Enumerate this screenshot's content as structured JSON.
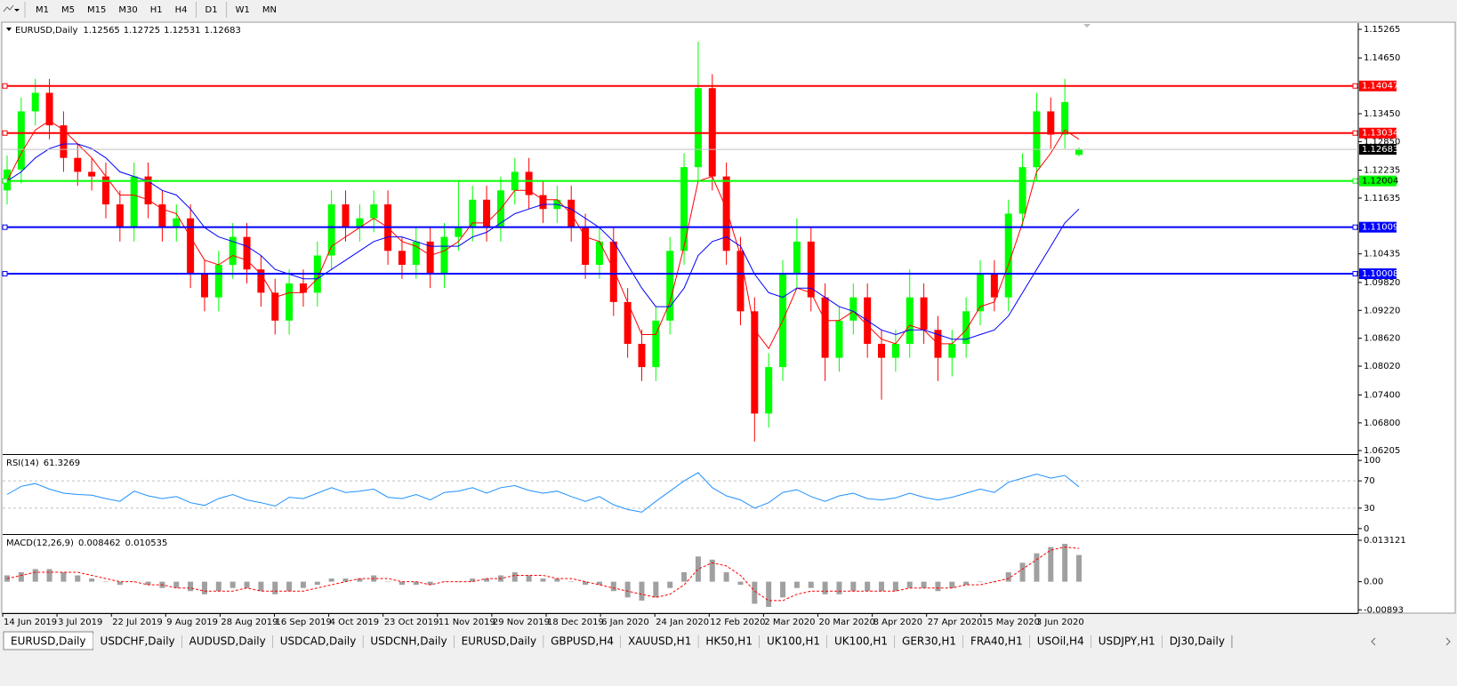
{
  "toolbar": {
    "timeframes": [
      "M1",
      "M5",
      "M15",
      "M30",
      "H1",
      "H4",
      "D1",
      "W1",
      "MN"
    ]
  },
  "tabs": [
    "EURUSD,Daily",
    "USDCHF,Daily",
    "AUDUSD,Daily",
    "USDCAD,Daily",
    "USDCNH,Daily",
    "EURUSD,Daily",
    "GBPUSD,H4",
    "XAUUSD,H1",
    "HK50,H1",
    "UK100,H1",
    "UK100,H1",
    "GER30,H1",
    "FRA40,H1",
    "USOil,H4",
    "USDJPY,H1",
    "DJ30,Daily"
  ],
  "chart_data": [
    {
      "type": "candlestick",
      "title": "EURUSD,Daily",
      "up_color": "#00ff00",
      "down_color": "#ff0000",
      "x": [
        "14 Jun 2019",
        "3 Jul 2019",
        "22 Jul 2019",
        "9 Aug 2019",
        "28 Aug 2019",
        "16 Sep 2019",
        "4 Oct 2019",
        "23 Oct 2019",
        "11 Nov 2019",
        "29 Nov 2019",
        "18 Dec 2019",
        "6 Jan 2020",
        "24 Jan 2020",
        "12 Feb 2020",
        "2 Mar 2020",
        "20 Mar 2020",
        "8 Apr 2020",
        "27 Apr 2020",
        "15 May 2020",
        "3 Jun 2020"
      ],
      "candles": [
        [
          1.118,
          1.1255,
          1.115,
          1.1225
        ],
        [
          1.1225,
          1.138,
          1.1195,
          1.135
        ],
        [
          1.135,
          1.142,
          1.132,
          1.139
        ],
        [
          1.139,
          1.142,
          1.129,
          1.132
        ],
        [
          1.132,
          1.135,
          1.122,
          1.125
        ],
        [
          1.125,
          1.128,
          1.119,
          1.122
        ],
        [
          1.122,
          1.125,
          1.118,
          1.121
        ],
        [
          1.121,
          1.124,
          1.112,
          1.115
        ],
        [
          1.115,
          1.118,
          1.107,
          1.11
        ],
        [
          1.11,
          1.124,
          1.107,
          1.121
        ],
        [
          1.121,
          1.124,
          1.112,
          1.115
        ],
        [
          1.115,
          1.118,
          1.107,
          1.11
        ],
        [
          1.11,
          1.115,
          1.107,
          1.112
        ],
        [
          1.112,
          1.115,
          1.097,
          1.1
        ],
        [
          1.1,
          1.103,
          1.092,
          1.095
        ],
        [
          1.095,
          1.105,
          1.092,
          1.102
        ],
        [
          1.102,
          1.111,
          1.099,
          1.108
        ],
        [
          1.108,
          1.111,
          1.098,
          1.101
        ],
        [
          1.101,
          1.104,
          1.093,
          1.096
        ],
        [
          1.096,
          1.099,
          1.087,
          1.09
        ],
        [
          1.09,
          1.101,
          1.087,
          1.098
        ],
        [
          1.098,
          1.101,
          1.093,
          1.096
        ],
        [
          1.096,
          1.107,
          1.093,
          1.104
        ],
        [
          1.104,
          1.118,
          1.101,
          1.115
        ],
        [
          1.115,
          1.118,
          1.107,
          1.11
        ],
        [
          1.11,
          1.115,
          1.107,
          1.112
        ],
        [
          1.112,
          1.118,
          1.109,
          1.115
        ],
        [
          1.115,
          1.118,
          1.102,
          1.105
        ],
        [
          1.105,
          1.108,
          1.099,
          1.102
        ],
        [
          1.102,
          1.11,
          1.099,
          1.107
        ],
        [
          1.107,
          1.11,
          1.097,
          1.1
        ],
        [
          1.1,
          1.111,
          1.097,
          1.108
        ],
        [
          1.108,
          1.12,
          1.105,
          1.11
        ],
        [
          1.11,
          1.119,
          1.107,
          1.116
        ],
        [
          1.116,
          1.119,
          1.107,
          1.11
        ],
        [
          1.11,
          1.121,
          1.107,
          1.118
        ],
        [
          1.118,
          1.125,
          1.115,
          1.122
        ],
        [
          1.122,
          1.125,
          1.114,
          1.117
        ],
        [
          1.117,
          1.12,
          1.111,
          1.114
        ],
        [
          1.114,
          1.119,
          1.111,
          1.116
        ],
        [
          1.116,
          1.119,
          1.107,
          1.11
        ],
        [
          1.11,
          1.113,
          1.099,
          1.102
        ],
        [
          1.102,
          1.11,
          1.099,
          1.107
        ],
        [
          1.107,
          1.11,
          1.091,
          1.094
        ],
        [
          1.094,
          1.097,
          1.082,
          1.085
        ],
        [
          1.085,
          1.088,
          1.077,
          1.08
        ],
        [
          1.08,
          1.093,
          1.077,
          1.09
        ],
        [
          1.09,
          1.108,
          1.087,
          1.105
        ],
        [
          1.105,
          1.126,
          1.102,
          1.123
        ],
        [
          1.123,
          1.15,
          1.12,
          1.14
        ],
        [
          1.14,
          1.143,
          1.118,
          1.121
        ],
        [
          1.121,
          1.124,
          1.102,
          1.105
        ],
        [
          1.105,
          1.108,
          1.089,
          1.092
        ],
        [
          1.092,
          1.095,
          1.064,
          1.07
        ],
        [
          1.07,
          1.083,
          1.067,
          1.08
        ],
        [
          1.08,
          1.103,
          1.077,
          1.1
        ],
        [
          1.1,
          1.112,
          1.097,
          1.107
        ],
        [
          1.107,
          1.11,
          1.092,
          1.095
        ],
        [
          1.095,
          1.098,
          1.077,
          1.082
        ],
        [
          1.082,
          1.093,
          1.079,
          1.09
        ],
        [
          1.09,
          1.098,
          1.087,
          1.095
        ],
        [
          1.095,
          1.098,
          1.082,
          1.085
        ],
        [
          1.085,
          1.088,
          1.073,
          1.082
        ],
        [
          1.082,
          1.088,
          1.079,
          1.085
        ],
        [
          1.085,
          1.101,
          1.082,
          1.095
        ],
        [
          1.095,
          1.098,
          1.085,
          1.088
        ],
        [
          1.088,
          1.091,
          1.077,
          1.082
        ],
        [
          1.082,
          1.088,
          1.078,
          1.085
        ],
        [
          1.085,
          1.095,
          1.082,
          1.092
        ],
        [
          1.092,
          1.103,
          1.089,
          1.1
        ],
        [
          1.1,
          1.103,
          1.092,
          1.095
        ],
        [
          1.095,
          1.116,
          1.092,
          1.113
        ],
        [
          1.113,
          1.126,
          1.11,
          1.123
        ],
        [
          1.123,
          1.139,
          1.12,
          1.135
        ],
        [
          1.135,
          1.138,
          1.127,
          1.13
        ],
        [
          1.13,
          1.142,
          1.127,
          1.137
        ],
        [
          1.12565,
          1.12725,
          1.12531,
          1.12683
        ]
      ],
      "ma": [
        {
          "color": "#ff0000",
          "values": [
            1.12,
            1.126,
            1.131,
            1.133,
            1.131,
            1.128,
            1.125,
            1.121,
            1.117,
            1.117,
            1.116,
            1.114,
            1.113,
            1.108,
            1.103,
            1.102,
            1.104,
            1.103,
            1.1,
            1.095,
            1.096,
            1.096,
            1.099,
            1.106,
            1.108,
            1.11,
            1.112,
            1.11,
            1.107,
            1.106,
            1.104,
            1.105,
            1.107,
            1.111,
            1.111,
            1.114,
            1.118,
            1.118,
            1.116,
            1.116,
            1.113,
            1.108,
            1.107,
            1.101,
            1.094,
            1.087,
            1.087,
            1.094,
            1.106,
            1.12,
            1.121,
            1.114,
            1.104,
            1.088,
            1.084,
            1.09,
            1.097,
            1.096,
            1.09,
            1.09,
            1.092,
            1.089,
            1.086,
            1.085,
            1.089,
            1.088,
            1.085,
            1.085,
            1.088,
            1.093,
            1.094,
            1.102,
            1.111,
            1.122,
            1.126,
            1.131,
            1.129
          ]
        },
        {
          "color": "#0000ff",
          "values": [
            1.12,
            1.122,
            1.125,
            1.127,
            1.128,
            1.128,
            1.127,
            1.125,
            1.122,
            1.121,
            1.12,
            1.118,
            1.117,
            1.114,
            1.11,
            1.108,
            1.107,
            1.106,
            1.104,
            1.101,
            1.1,
            1.099,
            1.099,
            1.101,
            1.103,
            1.105,
            1.107,
            1.108,
            1.108,
            1.107,
            1.106,
            1.106,
            1.106,
            1.108,
            1.109,
            1.111,
            1.113,
            1.114,
            1.115,
            1.115,
            1.114,
            1.112,
            1.11,
            1.107,
            1.102,
            1.097,
            1.093,
            1.093,
            1.097,
            1.104,
            1.107,
            1.108,
            1.106,
            1.1,
            1.096,
            1.095,
            1.097,
            1.097,
            1.095,
            1.093,
            1.092,
            1.09,
            1.088,
            1.087,
            1.088,
            1.088,
            1.087,
            1.086,
            1.086,
            1.087,
            1.088,
            1.091,
            1.096,
            1.101,
            1.106,
            1.111,
            1.114
          ]
        }
      ],
      "levels": [
        {
          "value": 1.14047,
          "color": "#ff0000"
        },
        {
          "value": 1.13034,
          "color": "#ff0000"
        },
        {
          "value": 1.12004,
          "color": "#00ff00"
        },
        {
          "value": 1.11009,
          "color": "#0000ff"
        },
        {
          "value": 1.10008,
          "color": "#0000ff"
        }
      ],
      "ylim": [
        1.06148,
        1.15399
      ],
      "yticks": [
        1.15265,
        {
          "value": 1.1465,
          "label": "1.14650"
        },
        {
          "value": 1.1345,
          "label": "1.13450"
        },
        {
          "value": 1.1285,
          "label": "1.12850"
        },
        1.12235,
        1.11635,
        1.10435,
        {
          "value": 1.0982,
          "label": "1.09820"
        },
        {
          "value": 1.0922,
          "label": "1.09220"
        },
        {
          "value": 1.0862,
          "label": "1.08620"
        },
        {
          "value": 1.0802,
          "label": "1.08020"
        },
        {
          "value": 1.074,
          "label": "1.07400"
        },
        {
          "value": 1.068,
          "label": "1.06800"
        },
        1.06205
      ]
    },
    {
      "type": "line",
      "title": "RSI(14)",
      "color": "#1e90ff",
      "values": [
        50,
        62,
        66,
        58,
        52,
        50,
        49,
        44,
        40,
        55,
        48,
        44,
        47,
        38,
        34,
        44,
        50,
        42,
        38,
        33,
        46,
        44,
        52,
        60,
        53,
        55,
        58,
        46,
        44,
        50,
        42,
        53,
        55,
        60,
        52,
        60,
        63,
        56,
        52,
        55,
        47,
        40,
        47,
        35,
        28,
        24,
        40,
        55,
        70,
        82,
        60,
        48,
        42,
        30,
        38,
        53,
        57,
        47,
        40,
        48,
        52,
        44,
        42,
        45,
        52,
        46,
        42,
        46,
        52,
        58,
        53,
        68,
        74,
        80,
        74,
        78,
        61.3269
      ],
      "ylim": [
        -8,
        108
      ],
      "yticks": [
        100,
        70,
        30,
        0
      ],
      "levels": [
        70,
        30
      ]
    },
    {
      "type": "macd",
      "title": "MACD(12,26,9)",
      "hist_color": "#a0a0a0",
      "signal_color": "#ff0000",
      "values": [
        0.002,
        0.003,
        0.004,
        0.004,
        0.003,
        0.002,
        0.001,
        0,
        -0.001,
        0,
        -0.001,
        -0.002,
        -0.002,
        -0.003,
        -0.004,
        -0.003,
        -0.002,
        -0.002,
        -0.003,
        -0.004,
        -0.003,
        -0.002,
        -0.001,
        0.001,
        0.001,
        0.001,
        0.002,
        0,
        -0.001,
        -0.001,
        -0.001,
        0,
        0,
        0.001,
        0.001,
        0.002,
        0.003,
        0.002,
        0.001,
        0.001,
        0,
        -0.001,
        -0.001,
        -0.003,
        -0.005,
        -0.006,
        -0.005,
        -0.002,
        0.003,
        0.008,
        0.007,
        0.003,
        -0.001,
        -0.007,
        -0.008,
        -0.005,
        -0.002,
        -0.002,
        -0.004,
        -0.004,
        -0.003,
        -0.003,
        -0.003,
        -0.003,
        -0.002,
        -0.002,
        -0.003,
        -0.002,
        -0.001,
        0,
        0,
        0.003,
        0.006,
        0.009,
        0.011,
        0.012,
        0.008462
      ],
      "signal": [
        0.001,
        0.002,
        0.003,
        0.003,
        0.003,
        0.003,
        0.002,
        0.001,
        0,
        0,
        -0.001,
        -0.001,
        -0.002,
        -0.002,
        -0.003,
        -0.003,
        -0.003,
        -0.002,
        -0.003,
        -0.003,
        -0.003,
        -0.003,
        -0.002,
        -0.001,
        0,
        0.001,
        0.001,
        0.001,
        0,
        0,
        -0.001,
        0,
        0,
        0,
        0.001,
        0.001,
        0.002,
        0.002,
        0.002,
        0.001,
        0.001,
        0,
        -0.001,
        -0.002,
        -0.003,
        -0.004,
        -0.005,
        -0.004,
        -0.001,
        0.004,
        0.006,
        0.005,
        0.002,
        -0.003,
        -0.006,
        -0.006,
        -0.004,
        -0.003,
        -0.003,
        -0.003,
        -0.003,
        -0.003,
        -0.003,
        -0.003,
        -0.002,
        -0.002,
        -0.002,
        -0.002,
        -0.001,
        -0.001,
        0,
        0.001,
        0.004,
        0.007,
        0.01,
        0.011,
        0.010535
      ],
      "ylim": [
        -0.00998,
        0.01483
      ],
      "yticks": [
        0.013121,
        {
          "value": 0,
          "label": "0.00"
        },
        -0.00893
      ]
    }
  ]
}
